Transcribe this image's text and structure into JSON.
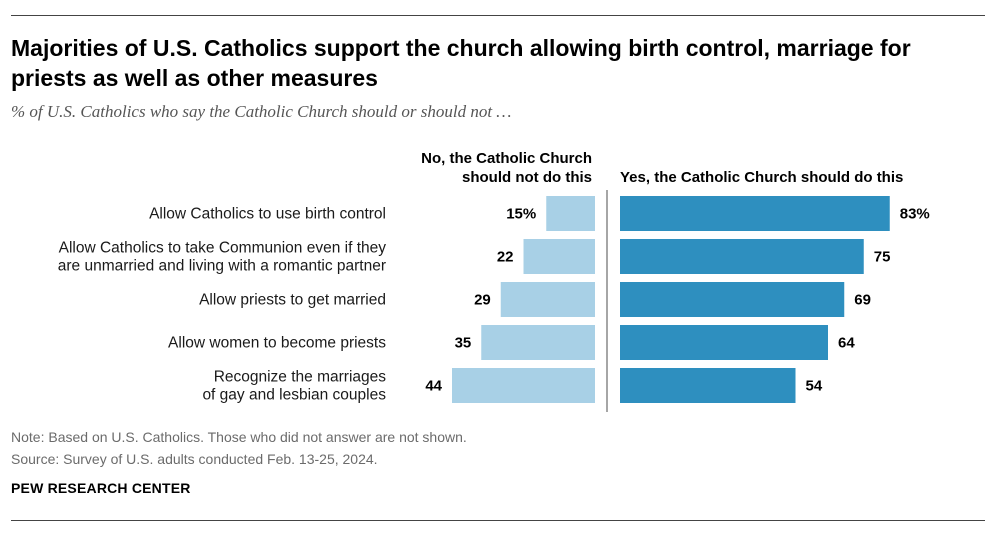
{
  "title": "Majorities of U.S. Catholics support the church allowing birth control, marriage for priests as well as other measures",
  "subtitle": "% of U.S. Catholics who say the Catholic Church should or should not …",
  "note": "Note: Based on U.S. Catholics. Those who did not answer are not shown.",
  "source": "Source: Survey of U.S. adults conducted Feb. 13-25, 2024.",
  "brand": "PEW RESEARCH CENTER",
  "colors": {
    "no": "#a8d0e6",
    "yes": "#2e8fbf",
    "divider": "#888888"
  },
  "chart_data": {
    "type": "bar",
    "orientation": "horizontal-diverging",
    "column_headers": {
      "no": [
        "No, the Catholic Church",
        "should not do this"
      ],
      "yes": [
        "Yes, the Catholic Church should do this"
      ]
    },
    "categories": [
      [
        "Allow Catholics to use birth control"
      ],
      [
        "Allow Catholics to take Communion even if they",
        "are unmarried and living with a romantic partner"
      ],
      [
        "Allow priests to get married"
      ],
      [
        "Allow women to become priests"
      ],
      [
        "Recognize the marriages",
        "of gay and lesbian couples"
      ]
    ],
    "series": [
      {
        "name": "No, the Catholic Church should not do this",
        "key": "no",
        "values": [
          15,
          22,
          29,
          35,
          44
        ],
        "labels": [
          "15%",
          "22",
          "29",
          "35",
          "44"
        ]
      },
      {
        "name": "Yes, the Catholic Church should do this",
        "key": "yes",
        "values": [
          83,
          75,
          69,
          64,
          54
        ],
        "labels": [
          "83%",
          "75",
          "69",
          "64",
          "54"
        ]
      }
    ],
    "xlim": [
      0,
      100
    ]
  }
}
